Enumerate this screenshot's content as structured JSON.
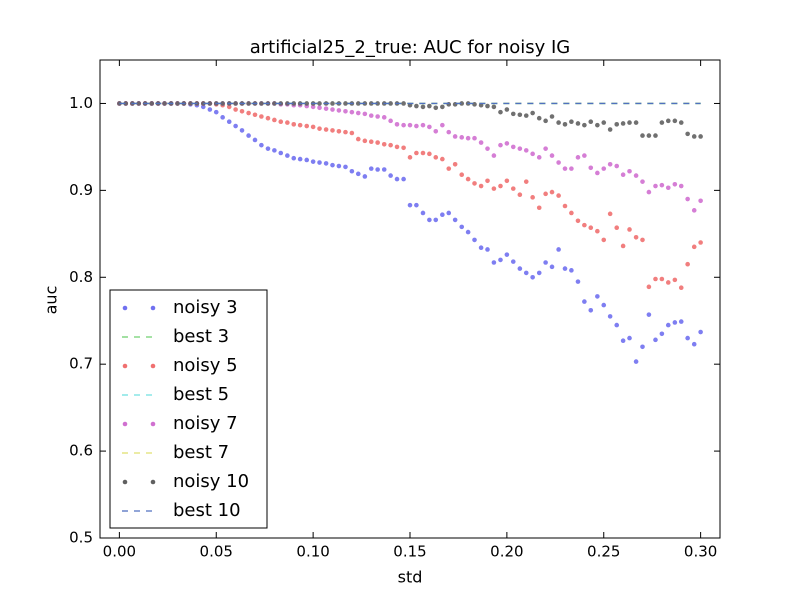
{
  "chart_data": {
    "type": "scatter",
    "title": "artificial25_2_true: AUC for noisy IG",
    "xlabel": "std",
    "ylabel": "auc",
    "xlim": [
      -0.01,
      0.31
    ],
    "ylim": [
      0.5,
      1.05
    ],
    "xticks": [
      {
        "value": 0,
        "label": "0.00"
      },
      {
        "value": 0.05,
        "label": "0.05"
      },
      {
        "value": 0.1,
        "label": "0.10"
      },
      {
        "value": 0.15,
        "label": "0.15"
      },
      {
        "value": 0.2,
        "label": "0.20"
      },
      {
        "value": 0.25,
        "label": "0.25"
      },
      {
        "value": 0.3,
        "label": "0.30"
      }
    ],
    "yticks": [
      0.5,
      0.6,
      0.7,
      0.8,
      0.9,
      {
        "value": 1.0,
        "label": "1.0"
      }
    ],
    "grid": false,
    "legend": "lower left",
    "x": [
      0,
      0.0033,
      0.0067,
      0.01,
      0.0133,
      0.0167,
      0.02,
      0.0233,
      0.0267,
      0.03,
      0.0333,
      0.0367,
      0.04,
      0.0433,
      0.0467,
      0.05,
      0.0533,
      0.0567,
      0.06,
      0.0633,
      0.0667,
      0.07,
      0.0733,
      0.0767,
      0.08,
      0.0833,
      0.0867,
      0.09,
      0.0933,
      0.0967,
      0.1,
      0.1033,
      0.1067,
      0.11,
      0.1133,
      0.1167,
      0.12,
      0.1233,
      0.1267,
      0.13,
      0.1333,
      0.1367,
      0.14,
      0.1433,
      0.1467,
      0.15,
      0.1533,
      0.1567,
      0.16,
      0.1633,
      0.1667,
      0.17,
      0.1733,
      0.1767,
      0.18,
      0.1833,
      0.1867,
      0.19,
      0.1933,
      0.1967,
      0.2,
      0.2033,
      0.2067,
      0.21,
      0.2133,
      0.2167,
      0.22,
      0.2233,
      0.2267,
      0.23,
      0.2333,
      0.2367,
      0.24,
      0.2433,
      0.2467,
      0.25,
      0.2533,
      0.2567,
      0.26,
      0.2633,
      0.2667,
      0.27,
      0.2733,
      0.2767,
      0.28,
      0.2833,
      0.2867,
      0.29,
      0.2933,
      0.2967,
      0.3
    ],
    "series": [
      {
        "name": "noisy 3",
        "color": "#7070f0",
        "linestyle": "dotted",
        "values": [
          1,
          1,
          1,
          1,
          1,
          1,
          1,
          1,
          1,
          1,
          1,
          0.999,
          0.998,
          0.996,
          0.993,
          0.99,
          0.984,
          0.979,
          0.974,
          0.969,
          0.963,
          0.958,
          0.952,
          0.948,
          0.946,
          0.943,
          0.94,
          0.937,
          0.936,
          0.935,
          0.933,
          0.932,
          0.931,
          0.929,
          0.928,
          0.927,
          0.922,
          0.919,
          0.916,
          0.925,
          0.924,
          0.924,
          0.917,
          0.913,
          0.913,
          0.883,
          0.883,
          0.874,
          0.866,
          0.866,
          0.872,
          0.874,
          0.866,
          0.858,
          0.852,
          0.843,
          0.834,
          0.832,
          0.817,
          0.82,
          0.826,
          0.818,
          0.81,
          0.805,
          0.8,
          0.805,
          0.817,
          0.812,
          0.832,
          0.81,
          0.808,
          0.795,
          0.772,
          0.762,
          0.778,
          0.768,
          0.755,
          0.745,
          0.727,
          0.73,
          0.703,
          0.72,
          0.757,
          0.728,
          0.735,
          0.745,
          0.748,
          0.749,
          0.73,
          0.723,
          0.737
        ]
      },
      {
        "name": "best 3",
        "color": "#70d070",
        "linestyle": "dashed",
        "x": [
          0,
          0.3
        ],
        "values": [
          1,
          1
        ]
      },
      {
        "name": "noisy 5",
        "color": "#f07070",
        "linestyle": "dotted",
        "values": [
          1,
          1,
          1,
          1,
          1,
          1,
          1,
          1,
          1,
          1,
          1,
          1,
          1,
          1,
          1,
          0.999,
          0.998,
          0.996,
          0.993,
          0.991,
          0.989,
          0.987,
          0.985,
          0.983,
          0.981,
          0.979,
          0.978,
          0.976,
          0.975,
          0.974,
          0.973,
          0.971,
          0.97,
          0.969,
          0.968,
          0.967,
          0.966,
          0.959,
          0.957,
          0.956,
          0.955,
          0.953,
          0.952,
          0.95,
          0.949,
          0.938,
          0.943,
          0.943,
          0.942,
          0.938,
          0.936,
          0.925,
          0.93,
          0.918,
          0.913,
          0.908,
          0.905,
          0.911,
          0.902,
          0.905,
          0.911,
          0.902,
          0.895,
          0.91,
          0.892,
          0.88,
          0.896,
          0.898,
          0.894,
          0.882,
          0.874,
          0.865,
          0.86,
          0.857,
          0.853,
          0.843,
          0.873,
          0.857,
          0.836,
          0.855,
          0.846,
          0.843,
          0.789,
          0.798,
          0.798,
          0.794,
          0.797,
          0.788,
          0.815,
          0.835,
          0.84
        ]
      },
      {
        "name": "best 5",
        "color": "#70e0e0",
        "linestyle": "dashed",
        "x": [
          0,
          0.3
        ],
        "values": [
          1,
          1
        ]
      },
      {
        "name": "noisy 7",
        "color": "#d070d0",
        "linestyle": "dotted",
        "values": [
          1,
          1,
          1,
          1,
          1,
          1,
          1,
          1,
          1,
          1,
          1,
          1,
          1,
          1,
          1,
          1,
          1,
          1,
          1,
          1,
          1,
          1,
          1,
          1,
          1,
          0.999,
          0.999,
          0.998,
          0.998,
          0.997,
          0.996,
          0.995,
          0.994,
          0.993,
          0.992,
          0.991,
          0.99,
          0.989,
          0.988,
          0.986,
          0.985,
          0.984,
          0.98,
          0.976,
          0.975,
          0.975,
          0.974,
          0.975,
          0.973,
          0.968,
          0.975,
          0.967,
          0.962,
          0.961,
          0.96,
          0.96,
          0.955,
          0.948,
          0.94,
          0.952,
          0.954,
          0.95,
          0.948,
          0.946,
          0.942,
          0.938,
          0.948,
          0.94,
          0.932,
          0.925,
          0.925,
          0.938,
          0.94,
          0.926,
          0.92,
          0.925,
          0.93,
          0.928,
          0.918,
          0.922,
          0.917,
          0.91,
          0.898,
          0.905,
          0.906,
          0.903,
          0.907,
          0.905,
          0.89,
          0.877,
          0.888
        ]
      },
      {
        "name": "best 7",
        "color": "#e0e070",
        "linestyle": "dashed",
        "x": [
          0,
          0.3
        ],
        "values": [
          1,
          1
        ]
      },
      {
        "name": "noisy 10",
        "color": "#606060",
        "linestyle": "dotted",
        "values": [
          1,
          1,
          1,
          1,
          1,
          1,
          1,
          1,
          1,
          1,
          1,
          1,
          1,
          1,
          1,
          1,
          1,
          1,
          1,
          1,
          1,
          1,
          1,
          1,
          1,
          1,
          1,
          1,
          1,
          1,
          1,
          1,
          1,
          1,
          1,
          1,
          1,
          1,
          1,
          1,
          1,
          1,
          1,
          1,
          1,
          0.998,
          0.997,
          0.996,
          0.997,
          0.995,
          0.996,
          0.999,
          0.999,
          1,
          1,
          0.999,
          0.998,
          0.997,
          0.996,
          0.99,
          0.993,
          0.988,
          0.987,
          0.986,
          0.989,
          0.983,
          0.98,
          0.985,
          0.978,
          0.976,
          0.979,
          0.977,
          0.975,
          0.979,
          0.975,
          0.978,
          0.97,
          0.976,
          0.977,
          0.978,
          0.978,
          0.963,
          0.963,
          0.963,
          0.978,
          0.98,
          0.98,
          0.978,
          0.965,
          0.962,
          0.962
        ]
      },
      {
        "name": "best 10",
        "color": "#5070c0",
        "linestyle": "dashed",
        "x": [
          0,
          0.3
        ],
        "values": [
          1,
          1
        ]
      }
    ]
  }
}
